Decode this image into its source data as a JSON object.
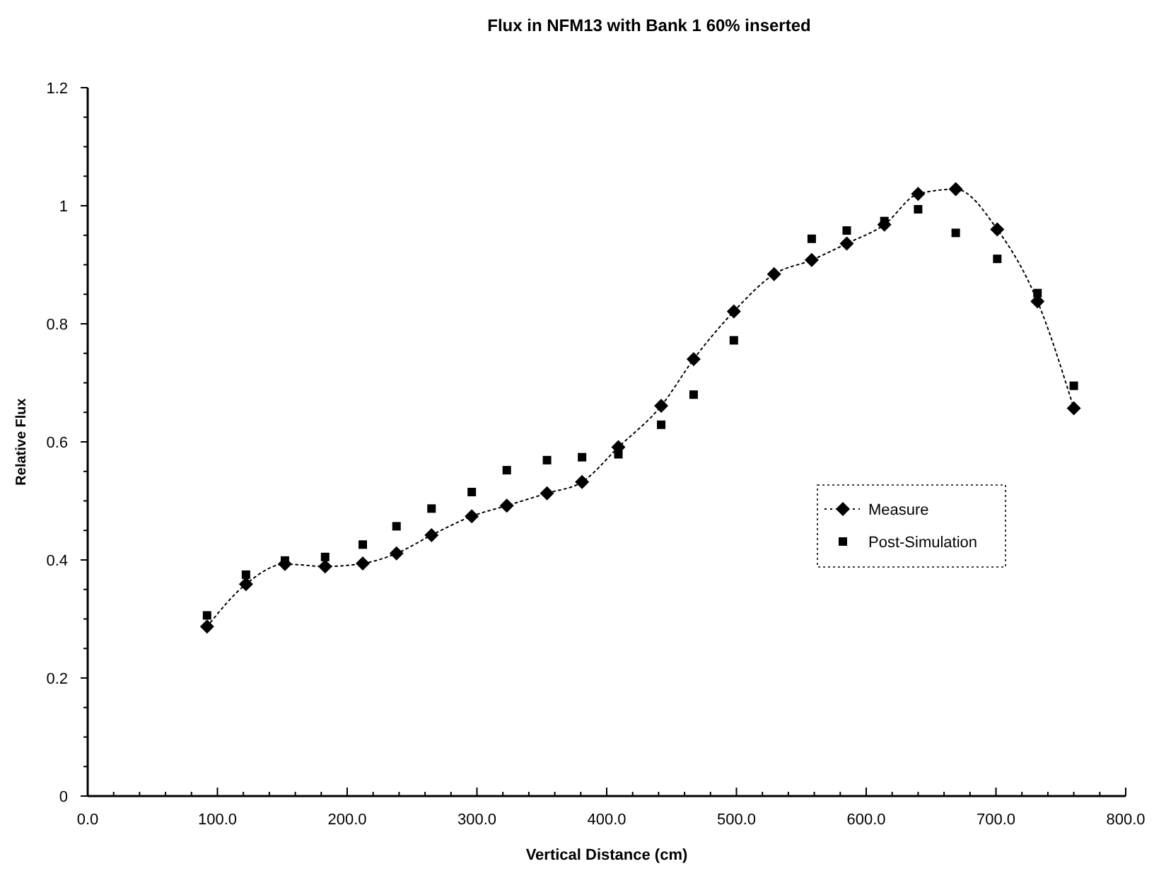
{
  "chart_data": {
    "type": "line",
    "title": "Flux in NFM13 with Bank 1 60% inserted",
    "xlabel": "Vertical Distance (cm)",
    "ylabel": "Relative Flux",
    "x": [
      92,
      122,
      152,
      183,
      212,
      238,
      265,
      296,
      323,
      354,
      381,
      409,
      442,
      467,
      498,
      529,
      558,
      585,
      614,
      640,
      669,
      701,
      732,
      760
    ],
    "series": [
      {
        "name": "Measure",
        "color": "#000000",
        "marker": "diamond",
        "line_style": "dotted",
        "values": [
          0.287,
          0.359,
          0.393,
          0.389,
          0.394,
          0.411,
          0.442,
          0.474,
          0.492,
          0.513,
          0.532,
          0.591,
          0.661,
          0.74,
          0.821,
          0.884,
          0.908,
          0.936,
          0.968,
          1.02,
          1.028,
          0.96,
          0.838,
          0.657
        ]
      },
      {
        "name": "Post-Simulation",
        "type": "scatter",
        "color": "#000000",
        "marker": "square",
        "values": [
          0.306,
          0.375,
          0.399,
          0.405,
          0.426,
          0.457,
          0.487,
          0.515,
          0.552,
          0.569,
          0.574,
          0.579,
          0.629,
          0.68,
          0.772,
          null,
          0.944,
          0.958,
          0.974,
          0.994,
          0.954,
          0.91,
          0.852,
          0.695
        ]
      }
    ],
    "xlim": [
      0,
      800
    ],
    "xticks": [
      {
        "value": 0,
        "label": "0.0"
      },
      {
        "value": 100,
        "label": "100.0"
      },
      {
        "value": 200,
        "label": "200.0"
      },
      {
        "value": 300,
        "label": "300.0"
      },
      {
        "value": 400,
        "label": "400.0"
      },
      {
        "value": 500,
        "label": "500.0"
      },
      {
        "value": 600,
        "label": "600.0"
      },
      {
        "value": 700,
        "label": "700.0"
      },
      {
        "value": 800,
        "label": "800.0"
      }
    ],
    "ylim": [
      0,
      1.2
    ],
    "yticks": [
      0,
      0.2,
      0.4,
      0.6,
      0.8,
      1,
      1.2
    ],
    "grid": false,
    "legend": "right"
  }
}
